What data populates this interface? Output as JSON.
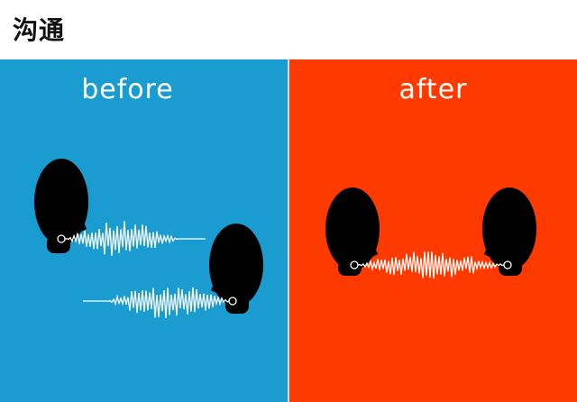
{
  "title": "沟通",
  "colors": {
    "before_bg": "#1a9cd0",
    "after_bg": "#ff3a00",
    "head": "#000000",
    "wave": "#ffffff"
  },
  "panels": [
    {
      "id": "before",
      "label": "before"
    },
    {
      "id": "after",
      "label": "after"
    }
  ]
}
